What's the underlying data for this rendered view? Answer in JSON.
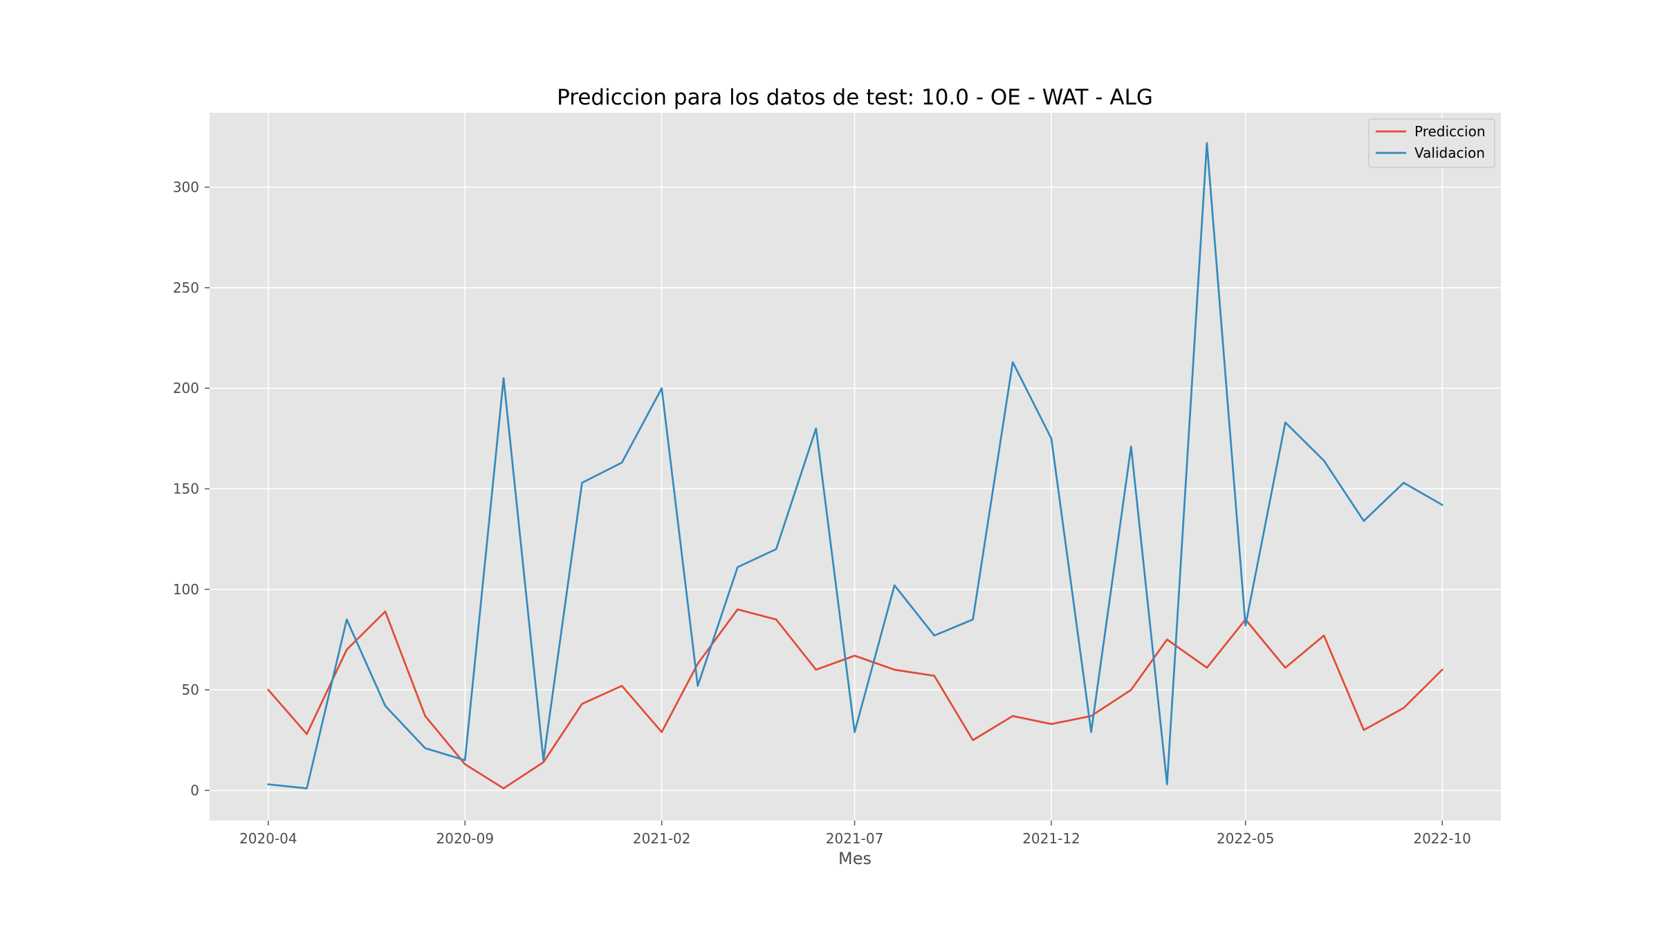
{
  "chart_data": {
    "type": "line",
    "title": "Prediccion para los datos de test: 10.0 - OE - WAT - ALG",
    "xlabel": "Mes",
    "ylabel": "",
    "x": [
      "2020-04-01",
      "2020-05-01",
      "2020-06-01",
      "2020-07-01",
      "2020-08-01",
      "2020-09-01",
      "2020-10-01",
      "2020-11-01",
      "2020-12-01",
      "2021-01-01",
      "2021-02-01",
      "2021-03-01",
      "2021-04-01",
      "2021-05-01",
      "2021-06-01",
      "2021-07-01",
      "2021-08-01",
      "2021-09-01",
      "2021-10-01",
      "2021-11-01",
      "2021-12-01",
      "2022-01-01",
      "2022-02-01",
      "2022-03-01",
      "2022-04-01",
      "2022-05-01",
      "2022-06-01",
      "2022-07-01",
      "2022-08-01",
      "2022-09-01",
      "2022-10-01"
    ],
    "series": [
      {
        "name": "Prediccion",
        "color": "#E24A33",
        "values": [
          50,
          28,
          70,
          89,
          37,
          13,
          1,
          14,
          43,
          52,
          29,
          63,
          90,
          85,
          60,
          67,
          60,
          57,
          25,
          37,
          33,
          37,
          50,
          75,
          61,
          85,
          61,
          77,
          30,
          41,
          60
        ]
      },
      {
        "name": "Validacion",
        "color": "#348ABD",
        "values": [
          3,
          1,
          85,
          42,
          21,
          15,
          205,
          15,
          153,
          163,
          200,
          52,
          111,
          120,
          180,
          29,
          102,
          77,
          85,
          213,
          175,
          29,
          171,
          3,
          322,
          82,
          183,
          164,
          134,
          153,
          142
        ]
      }
    ],
    "x_ticks": [
      "2020-04",
      "2020-09",
      "2021-02",
      "2021-07",
      "2021-12",
      "2022-05",
      "2022-10"
    ],
    "y_ticks": [
      0,
      50,
      100,
      150,
      200,
      250,
      300
    ],
    "ylim": [
      -15,
      337
    ],
    "grid": true,
    "legend_position": "top-right",
    "background_color": "#E5E5E5",
    "grid_color": "#FFFFFF"
  }
}
